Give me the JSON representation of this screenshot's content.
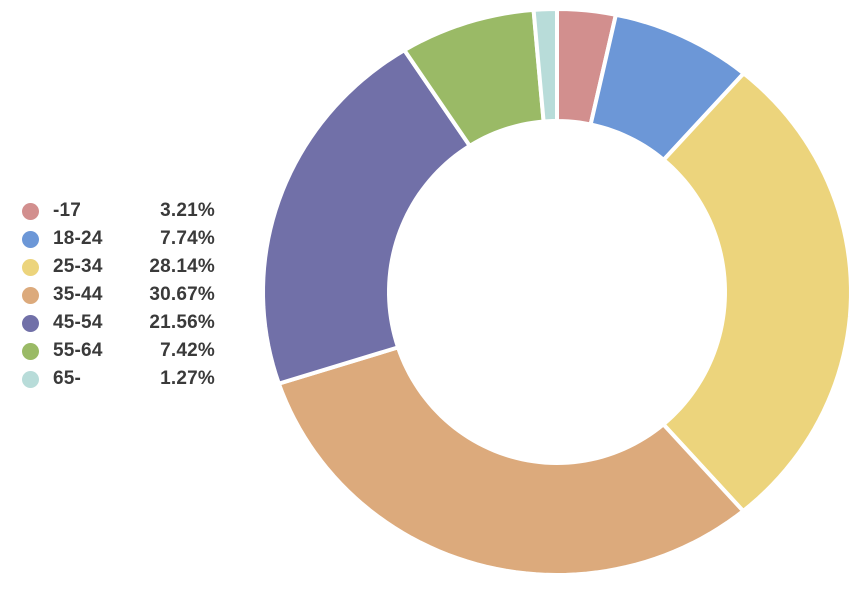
{
  "chart_data": {
    "type": "pie",
    "variant": "donut",
    "title": "",
    "legend_position": "left",
    "start_angle_deg": 0,
    "direction": "clockwise",
    "background_color": "#ffffff",
    "separator_color": "#ffffff",
    "text_color": "#3a3a3a",
    "slices": [
      {
        "label": "-17",
        "value": 3.21,
        "percent_label": "3.21%",
        "color": "#d28f8e"
      },
      {
        "label": "18-24",
        "value": 7.74,
        "percent_label": "7.74%",
        "color": "#6c97d7"
      },
      {
        "label": "25-34",
        "value": 28.14,
        "percent_label": "28.14%",
        "color": "#ecd47c"
      },
      {
        "label": "35-44",
        "value": 30.67,
        "percent_label": "30.67%",
        "color": "#dcaa7c"
      },
      {
        "label": "45-54",
        "value": 21.56,
        "percent_label": "21.56%",
        "color": "#7170a8"
      },
      {
        "label": "55-64",
        "value": 7.42,
        "percent_label": "7.42%",
        "color": "#9aba66"
      },
      {
        "label": "65-",
        "value": 1.27,
        "percent_label": "1.27%",
        "color": "#b8dcd9"
      }
    ]
  }
}
